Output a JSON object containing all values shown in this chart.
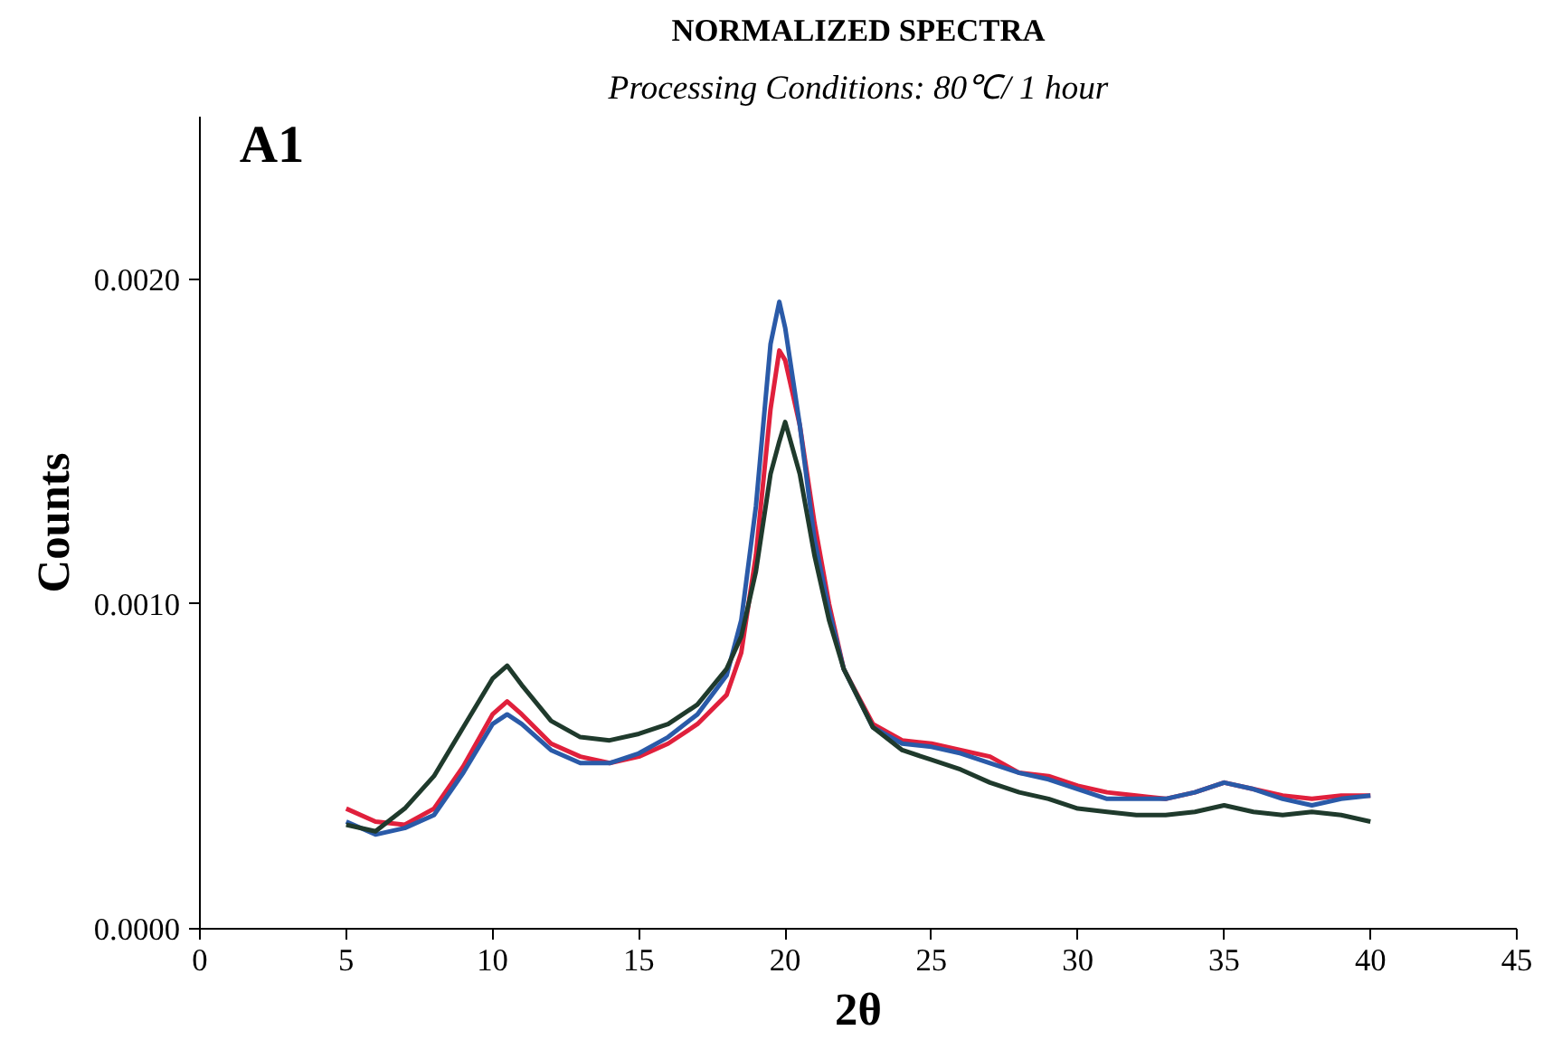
{
  "chart_data": {
    "type": "line",
    "title": "NORMALIZED SPECTRA",
    "subtitle": "Processing Conditions: 80℃/ 1 hour",
    "xlabel": "2θ",
    "ylabel": "Counts",
    "annotations": [
      "A1"
    ],
    "x": [
      5,
      6,
      7,
      8,
      9,
      10,
      10.5,
      11,
      12,
      13,
      14,
      15,
      16,
      17,
      18,
      18.5,
      19,
      19.5,
      19.8,
      20,
      20.5,
      21,
      21.5,
      22,
      23,
      24,
      25,
      26,
      27,
      28,
      29,
      30,
      31,
      32,
      33,
      34,
      35,
      36,
      37,
      38,
      39,
      40
    ],
    "series": [
      {
        "color": "#e0203c",
        "values": [
          0.00037,
          0.00033,
          0.00032,
          0.00037,
          0.0005,
          0.00066,
          0.0007,
          0.00066,
          0.00057,
          0.00053,
          0.00051,
          0.00053,
          0.00057,
          0.00063,
          0.00072,
          0.00085,
          0.00115,
          0.0016,
          0.00178,
          0.00175,
          0.00155,
          0.00125,
          0.001,
          0.0008,
          0.00063,
          0.00058,
          0.00057,
          0.00055,
          0.00053,
          0.00048,
          0.00047,
          0.00044,
          0.00042,
          0.00041,
          0.0004,
          0.00042,
          0.00045,
          0.00043,
          0.00041,
          0.0004,
          0.00041,
          0.00041
        ]
      },
      {
        "color": "#2a5aa8",
        "values": [
          0.00033,
          0.00029,
          0.00031,
          0.00035,
          0.00048,
          0.00063,
          0.00066,
          0.00063,
          0.00055,
          0.00051,
          0.00051,
          0.00054,
          0.00059,
          0.00066,
          0.00078,
          0.00095,
          0.0013,
          0.0018,
          0.00193,
          0.00185,
          0.00155,
          0.0012,
          0.00098,
          0.0008,
          0.00062,
          0.00057,
          0.00056,
          0.00054,
          0.00051,
          0.00048,
          0.00046,
          0.00043,
          0.0004,
          0.0004,
          0.0004,
          0.00042,
          0.00045,
          0.00043,
          0.0004,
          0.00038,
          0.0004,
          0.00041
        ]
      },
      {
        "color": "#1f3a2c",
        "values": [
          0.00032,
          0.0003,
          0.00037,
          0.00047,
          0.00062,
          0.00077,
          0.00081,
          0.00075,
          0.00064,
          0.00059,
          0.00058,
          0.0006,
          0.00063,
          0.00069,
          0.0008,
          0.0009,
          0.0011,
          0.0014,
          0.0015,
          0.00156,
          0.0014,
          0.00115,
          0.00095,
          0.0008,
          0.00062,
          0.00055,
          0.00052,
          0.00049,
          0.00045,
          0.00042,
          0.0004,
          0.00037,
          0.00036,
          0.00035,
          0.00035,
          0.00036,
          0.00038,
          0.00036,
          0.00035,
          0.00036,
          0.00035,
          0.00033
        ]
      }
    ],
    "xlim": [
      0,
      45
    ],
    "xticks": [
      0,
      5,
      10,
      15,
      20,
      25,
      30,
      35,
      40,
      45
    ],
    "ylim": [
      0,
      0.0025
    ],
    "yticks": [
      {
        "value": 0,
        "label": "0.0000"
      },
      {
        "value": 0.001,
        "label": "0.0010"
      },
      {
        "value": 0.002,
        "label": "0.0020"
      }
    ],
    "grid": false,
    "marker": "none",
    "line_style": "solid"
  }
}
